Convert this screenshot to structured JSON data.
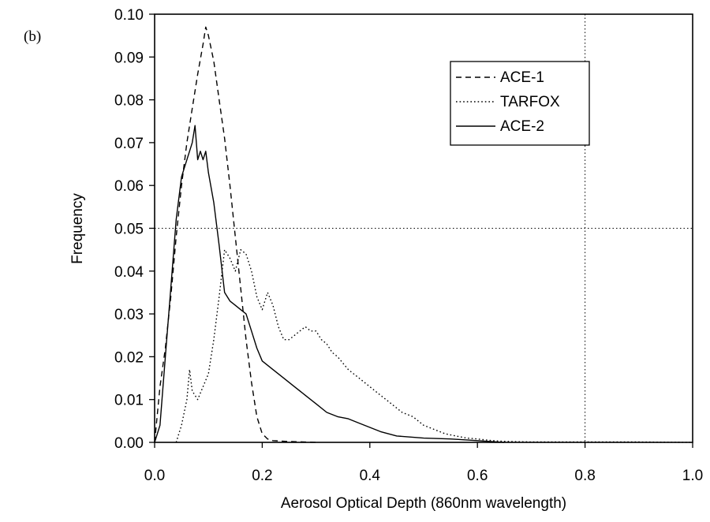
{
  "panel_label": "(b)",
  "chart_data": {
    "type": "line",
    "xlabel": "Aerosol Optical Depth (860nm wavelength)",
    "ylabel": "Frequency",
    "xlim": [
      0.0,
      1.0
    ],
    "ylim": [
      0.0,
      0.1
    ],
    "x_ticks": [
      "0.0",
      "0.2",
      "0.4",
      "0.6",
      "0.8",
      "1.0"
    ],
    "y_ticks": [
      "0.00",
      "0.01",
      "0.02",
      "0.03",
      "0.04",
      "0.05",
      "0.06",
      "0.07",
      "0.08",
      "0.09",
      "0.10"
    ],
    "grid": false,
    "legend_position": "top-right",
    "reference_lines": {
      "x": 0.8,
      "y": 0.05
    },
    "series": [
      {
        "name": "ACE-1",
        "style": "dashed",
        "color": "#000000",
        "x": [
          0.0,
          0.01,
          0.02,
          0.03,
          0.04,
          0.05,
          0.06,
          0.07,
          0.08,
          0.09,
          0.095,
          0.1,
          0.11,
          0.12,
          0.13,
          0.14,
          0.15,
          0.16,
          0.17,
          0.18,
          0.19,
          0.2,
          0.21,
          0.22,
          0.25,
          0.3
        ],
        "y": [
          0.0,
          0.013,
          0.022,
          0.034,
          0.048,
          0.06,
          0.07,
          0.078,
          0.086,
          0.093,
          0.097,
          0.095,
          0.089,
          0.08,
          0.071,
          0.06,
          0.048,
          0.036,
          0.024,
          0.014,
          0.006,
          0.002,
          0.0008,
          0.0004,
          0.0002,
          0.0
        ]
      },
      {
        "name": "TARFOX",
        "style": "dotted",
        "color": "#000000",
        "x": [
          0.04,
          0.05,
          0.06,
          0.065,
          0.07,
          0.08,
          0.09,
          0.1,
          0.11,
          0.12,
          0.13,
          0.14,
          0.15,
          0.16,
          0.17,
          0.18,
          0.19,
          0.2,
          0.21,
          0.22,
          0.23,
          0.24,
          0.25,
          0.26,
          0.27,
          0.28,
          0.29,
          0.3,
          0.31,
          0.32,
          0.33,
          0.34,
          0.36,
          0.38,
          0.4,
          0.42,
          0.44,
          0.46,
          0.48,
          0.5,
          0.52,
          0.54,
          0.56,
          0.58,
          0.6,
          0.62,
          0.64,
          0.66,
          0.7,
          0.8,
          0.9,
          1.0
        ],
        "y": [
          0.0,
          0.004,
          0.01,
          0.017,
          0.012,
          0.01,
          0.013,
          0.016,
          0.024,
          0.034,
          0.045,
          0.043,
          0.04,
          0.045,
          0.044,
          0.04,
          0.034,
          0.031,
          0.035,
          0.032,
          0.027,
          0.024,
          0.024,
          0.025,
          0.026,
          0.027,
          0.026,
          0.026,
          0.024,
          0.023,
          0.021,
          0.02,
          0.017,
          0.015,
          0.013,
          0.011,
          0.009,
          0.007,
          0.006,
          0.004,
          0.003,
          0.002,
          0.0015,
          0.001,
          0.0008,
          0.0005,
          0.0003,
          0.0002,
          0.0001,
          0.0001,
          0.0001,
          0.0
        ]
      },
      {
        "name": "ACE-2",
        "style": "solid",
        "color": "#000000",
        "x": [
          0.0,
          0.01,
          0.02,
          0.03,
          0.04,
          0.05,
          0.06,
          0.07,
          0.075,
          0.08,
          0.085,
          0.09,
          0.095,
          0.1,
          0.11,
          0.12,
          0.13,
          0.14,
          0.15,
          0.16,
          0.17,
          0.18,
          0.19,
          0.2,
          0.22,
          0.24,
          0.26,
          0.28,
          0.3,
          0.32,
          0.34,
          0.36,
          0.38,
          0.4,
          0.42,
          0.45,
          0.5,
          0.55,
          0.6,
          0.65
        ],
        "y": [
          0.0,
          0.004,
          0.02,
          0.036,
          0.052,
          0.062,
          0.066,
          0.07,
          0.074,
          0.066,
          0.068,
          0.066,
          0.068,
          0.063,
          0.056,
          0.046,
          0.035,
          0.033,
          0.032,
          0.031,
          0.03,
          0.026,
          0.022,
          0.019,
          0.017,
          0.015,
          0.013,
          0.011,
          0.009,
          0.007,
          0.006,
          0.0055,
          0.0045,
          0.0035,
          0.0025,
          0.0015,
          0.001,
          0.0008,
          0.0004,
          0.0
        ]
      }
    ]
  }
}
